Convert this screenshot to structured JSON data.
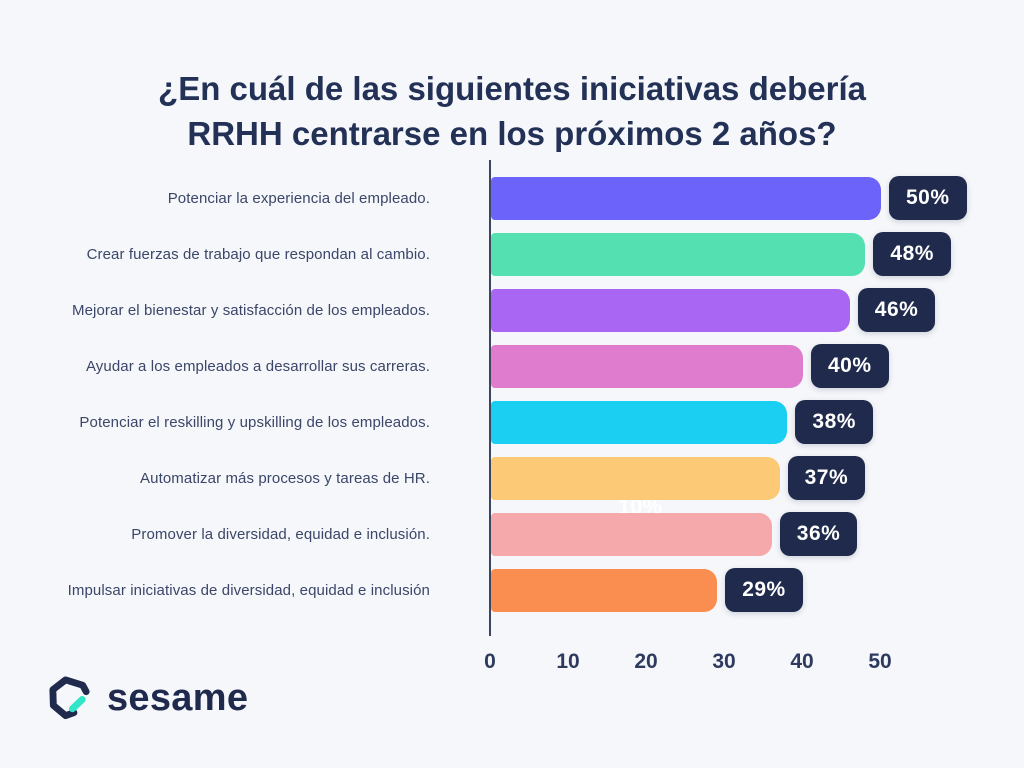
{
  "title": {
    "line1": "¿En cuál de las siguientes iniciativas debería",
    "line2": "RRHH centrarse en los próximos 2 años?"
  },
  "chart_data": {
    "type": "bar",
    "orientation": "horizontal",
    "title": "¿En cuál de las siguientes iniciativas debería RRHH centrarse en los próximos 2 años?",
    "categories": [
      "Potenciar la experiencia del empleado.",
      "Crear fuerzas de trabajo que respondan al cambio.",
      "Mejorar el bienestar y satisfacción de los empleados.",
      "Ayudar a los empleados a desarrollar sus carreras.",
      "Potenciar el reskilling y upskilling de los empleados.",
      "Automatizar más procesos y tareas de HR.",
      "Promover la diversidad, equidad e inclusión.",
      "Impulsar iniciativas de diversidad, equidad e inclusión"
    ],
    "values": [
      50,
      48,
      46,
      40,
      38,
      37,
      36,
      29
    ],
    "value_labels": [
      "50%",
      "48%",
      "46%",
      "40%",
      "38%",
      "37%",
      "36%",
      "29%"
    ],
    "bar_colors": [
      "#6C63FA",
      "#55E0B2",
      "#A866F2",
      "#DF7CCE",
      "#1BCFF2",
      "#FCC976",
      "#F5A9AB",
      "#F98E50"
    ],
    "x_ticks": [
      0,
      10,
      20,
      30,
      40,
      50
    ],
    "xlim": [
      0,
      50
    ],
    "grid": false,
    "legend": "none",
    "badge_color": "#1F2A4C",
    "ghost_label": "10%"
  },
  "logo": {
    "text": "sesame",
    "icon": "sesame-hexagon-icon",
    "icon_ring_color": "#1F2A4C",
    "icon_dash_color": "#30E5C8"
  },
  "colors": {
    "background": "#F5F7FA",
    "title_text": "#233156",
    "label_text": "#3B4669",
    "axis": "#3C4560",
    "badge_background": "#1F2A4C",
    "badge_text": "#FFFFFF"
  }
}
